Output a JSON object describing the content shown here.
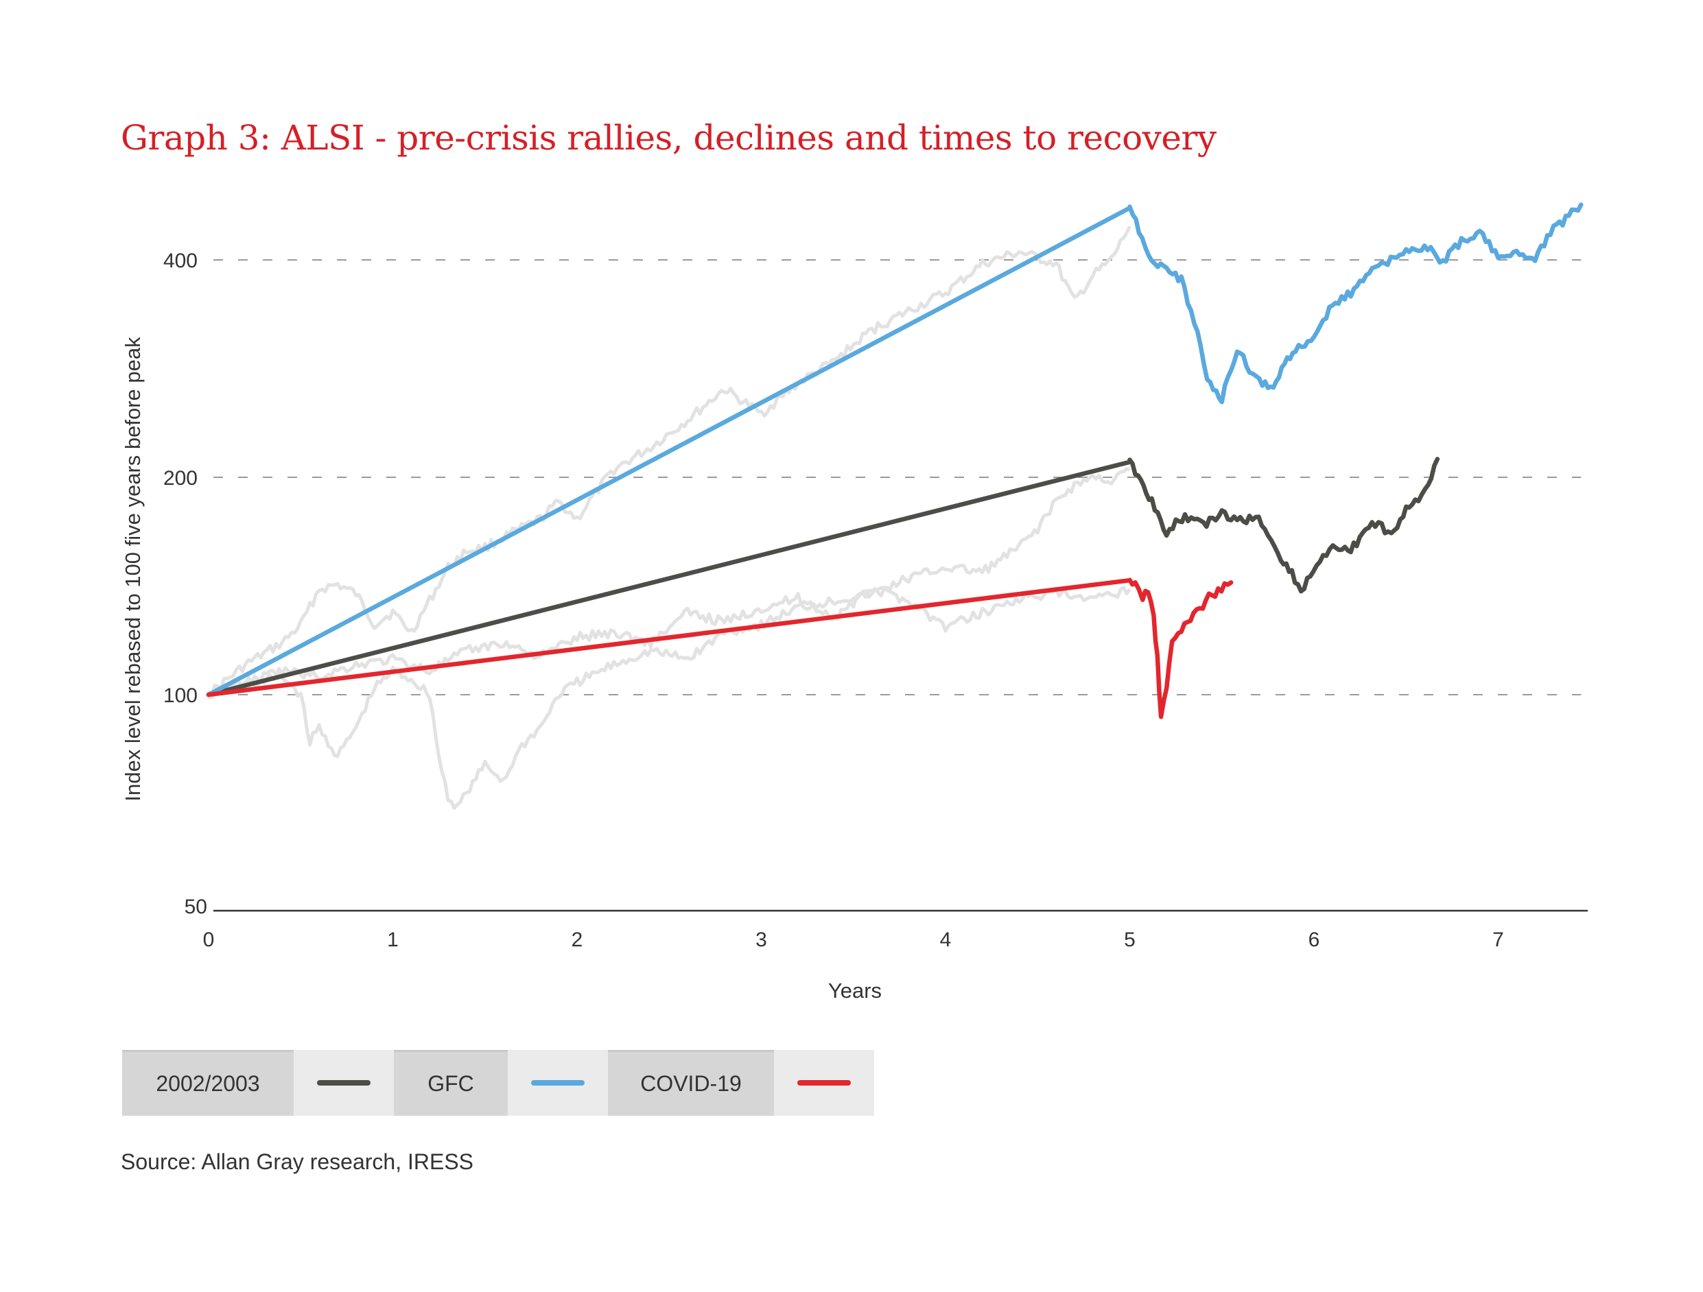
{
  "title": "Graph 3: ALSI - pre-crisis rallies, declines and times to recovery",
  "source": "Source: Allan Gray research, IRESS",
  "colors": {
    "title": "#d42027",
    "series_2002_2003": "#4d4d48",
    "series_gfc": "#5aa9de",
    "series_covid": "#e3262d",
    "background_paths": "#e2e2e2",
    "gridline": "#9a9a9a",
    "axis": "#333333"
  },
  "legend": [
    {
      "label": "2002/2003",
      "color": "#4d4d48"
    },
    {
      "label": "GFC",
      "color": "#5aa9de"
    },
    {
      "label": "COVID-19",
      "color": "#e3262d"
    }
  ],
  "chart_data": {
    "type": "line",
    "title": "Graph 3: ALSI - pre-crisis rallies, declines and times to recovery",
    "xlabel": "Years",
    "ylabel": "Index level rebased to 100 five years before peak",
    "x_ticks": [
      "0",
      "1",
      "2",
      "3",
      "4",
      "5",
      "6",
      "7"
    ],
    "y_ticks": [
      "50",
      "100",
      "200",
      "400"
    ],
    "y_tick_values": [
      50,
      100,
      200,
      400
    ],
    "y_scale": "log",
    "xlim": [
      0,
      7.45
    ],
    "ylim": [
      50,
      480
    ],
    "grid": "horizontal dashed at 100, 200, 400",
    "legend_position": "bottom-left",
    "series": [
      {
        "name": "2002/2003",
        "color": "#4d4d48",
        "x": [
          0,
          5.0,
          5.06,
          5.12,
          5.2,
          5.25,
          5.3,
          5.4,
          5.5,
          5.6,
          5.7,
          5.75,
          5.82,
          5.88,
          5.93,
          5.98,
          6.05,
          6.12,
          6.2,
          6.28,
          6.35,
          6.42,
          6.5,
          6.55,
          6.62,
          6.67
        ],
        "values": [
          100,
          210,
          198,
          185,
          166,
          174,
          176,
          172,
          178,
          174,
          176,
          166,
          155,
          147,
          139,
          146,
          156,
          160,
          158,
          170,
          173,
          166,
          181,
          184,
          196,
          212
        ]
      },
      {
        "name": "GFC",
        "color": "#5aa9de",
        "x": [
          0,
          5.0,
          5.05,
          5.12,
          5.2,
          5.28,
          5.35,
          5.42,
          5.47,
          5.5,
          5.55,
          5.6,
          5.65,
          5.72,
          5.78,
          5.84,
          5.9,
          6.0,
          6.1,
          6.2,
          6.3,
          6.45,
          6.6,
          6.7,
          6.8,
          6.9,
          7.0,
          7.1,
          7.2,
          7.3,
          7.45
        ],
        "values": [
          100,
          472,
          440,
          400,
          385,
          375,
          330,
          275,
          262,
          256,
          285,
          300,
          282,
          270,
          265,
          290,
          300,
          315,
          345,
          360,
          385,
          405,
          418,
          398,
          425,
          435,
          405,
          408,
          402,
          440,
          477
        ]
      },
      {
        "name": "COVID-19",
        "color": "#e3262d",
        "x": [
          0,
          5.0,
          5.03,
          5.07,
          5.1,
          5.13,
          5.15,
          5.17,
          5.2,
          5.23,
          5.28,
          5.33,
          5.38,
          5.43,
          5.48,
          5.55
        ],
        "values": [
          100,
          144,
          142,
          136,
          140,
          128,
          112,
          93,
          102,
          118,
          123,
          128,
          131,
          137,
          139,
          143
        ]
      }
    ],
    "background_series_note": "Light grey paths: actual pre-peak index paths for each crisis (unlabelled)",
    "background_series": [
      {
        "name": "grey-path-a",
        "x": [
          0,
          0.2,
          0.4,
          0.5,
          0.6,
          0.7,
          0.8,
          0.9,
          1.0,
          1.1,
          1.2,
          1.3,
          1.4,
          1.5,
          1.6,
          1.7,
          1.8,
          1.9,
          2.0,
          2.1,
          2.2,
          2.4,
          2.6,
          2.8,
          3.0,
          3.2,
          3.4,
          3.6,
          3.8,
          4.0,
          4.2,
          4.4,
          4.6,
          4.7,
          4.8,
          4.9,
          5.0
        ],
        "values": [
          100,
          110,
          118,
          125,
          140,
          142,
          138,
          125,
          130,
          122,
          135,
          150,
          158,
          160,
          165,
          170,
          175,
          185,
          175,
          190,
          205,
          220,
          240,
          265,
          245,
          270,
          290,
          320,
          340,
          360,
          395,
          410,
          395,
          350,
          380,
          400,
          445
        ]
      },
      {
        "name": "grey-path-b",
        "x": [
          0,
          0.2,
          0.4,
          0.5,
          0.55,
          0.6,
          0.7,
          0.8,
          0.9,
          1.0,
          1.1,
          1.2,
          1.25,
          1.3,
          1.35,
          1.4,
          1.5,
          1.6,
          1.7,
          1.8,
          1.9,
          2.0,
          2.2,
          2.4,
          2.6,
          2.8,
          3.0,
          3.2,
          3.4,
          3.6,
          3.8,
          4.0,
          4.2,
          4.4,
          4.5,
          4.6,
          4.7,
          4.8,
          4.9,
          5.0
        ],
        "values": [
          100,
          103,
          106,
          100,
          86,
          90,
          82,
          90,
          102,
          108,
          105,
          100,
          82,
          72,
          70,
          73,
          80,
          76,
          85,
          90,
          100,
          104,
          110,
          115,
          112,
          122,
          125,
          132,
          135,
          138,
          145,
          150,
          148,
          160,
          170,
          185,
          195,
          200,
          198,
          205
        ]
      },
      {
        "name": "grey-path-c",
        "x": [
          0,
          0.2,
          0.4,
          0.6,
          0.8,
          1.0,
          1.2,
          1.4,
          1.6,
          1.8,
          2.0,
          2.2,
          2.4,
          2.6,
          2.8,
          3.0,
          3.2,
          3.4,
          3.6,
          3.8,
          4.0,
          4.2,
          4.4,
          4.6,
          4.8,
          5.0
        ],
        "values": [
          100,
          104,
          108,
          106,
          110,
          112,
          108,
          115,
          118,
          113,
          120,
          122,
          118,
          130,
          126,
          132,
          136,
          128,
          140,
          135,
          124,
          130,
          136,
          138,
          135,
          140
        ]
      }
    ]
  }
}
